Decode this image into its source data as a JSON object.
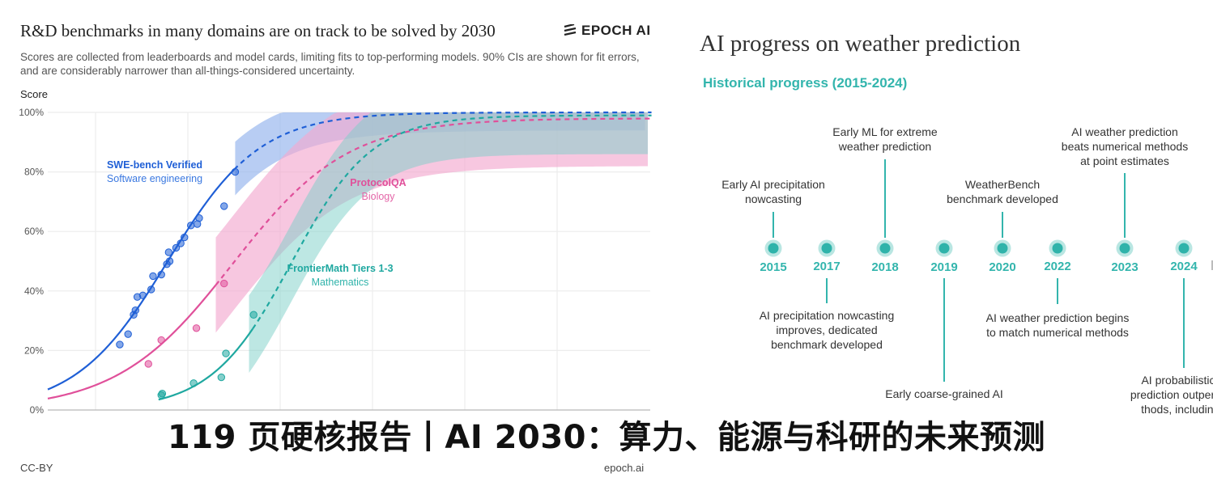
{
  "left_panel": {
    "title": "R&D benchmarks in many domains are on track to be solved by 2030",
    "logo": "EPOCH AI",
    "subtitle": "Scores are collected from leaderboards and model cards, limiting fits to top-performing models. 90% CIs are shown for fit errors, and are considerably narrower than all-things-considered uncertainty.",
    "y_axis_title": "Score",
    "license": "CC-BY",
    "source": "epoch.ai"
  },
  "chart_data": {
    "type": "scatter",
    "ylabel": "Score",
    "ylim": [
      0,
      100
    ],
    "yticks": [
      "0%",
      "20%",
      "40%",
      "60%",
      "80%",
      "100%"
    ],
    "grid": true,
    "colors": {
      "swe": "#1f5fd6",
      "protocol": "#e0509a",
      "frontier": "#1fa8a0"
    },
    "series": [
      {
        "key": "swe",
        "name": "SWE-bench Verified",
        "domain": "Software engineering",
        "points": [
          [
            0.78,
            22
          ],
          [
            0.87,
            25.5
          ],
          [
            0.93,
            32
          ],
          [
            0.95,
            33.5
          ],
          [
            0.97,
            38
          ],
          [
            1.03,
            38.5
          ],
          [
            1.12,
            40.5
          ],
          [
            1.14,
            45
          ],
          [
            1.23,
            45.5
          ],
          [
            1.29,
            49
          ],
          [
            1.32,
            50
          ],
          [
            1.31,
            53
          ],
          [
            1.39,
            54.5
          ],
          [
            1.44,
            56
          ],
          [
            1.48,
            58
          ],
          [
            1.55,
            62
          ],
          [
            1.62,
            62.5
          ],
          [
            1.64,
            64.5
          ],
          [
            1.91,
            68.5
          ],
          [
            2.03,
            80
          ]
        ]
      },
      {
        "key": "protocol",
        "name": "ProtocolQA",
        "domain": "Biology",
        "points": [
          [
            1.09,
            15.5
          ],
          [
            1.23,
            23.5
          ],
          [
            1.61,
            27.5
          ],
          [
            1.91,
            42.5
          ]
        ]
      },
      {
        "key": "frontier",
        "name": "FrontierMath Tiers 1-3",
        "domain": "Mathematics",
        "points": [
          [
            1.23,
            5
          ],
          [
            1.24,
            5.5
          ],
          [
            1.58,
            9
          ],
          [
            1.88,
            11
          ],
          [
            1.93,
            19
          ],
          [
            2.23,
            32
          ]
        ]
      }
    ]
  },
  "right_panel": {
    "title": "AI progress on weather prediction",
    "subtitle": "Historical progress (2015-2024)",
    "years": [
      "2015",
      "2017",
      "2018",
      "2019",
      "2020",
      "2022",
      "2023",
      "2024"
    ],
    "events_above": [
      {
        "year": "2015",
        "text": "Early AI precipitation\nnowcasting"
      },
      {
        "year": "2018",
        "text": "Early ML for extreme\nweather prediction"
      },
      {
        "year": "2020",
        "text": "WeatherBench\nbenchmark developed"
      },
      {
        "year": "2023",
        "text": "AI weather prediction\nbeats numerical methods\nat point estimates"
      }
    ],
    "events_below": [
      {
        "year": "2017",
        "text": "AI precipitation nowcasting\nimproves, dedicated\nbenchmark developed"
      },
      {
        "year": "2022",
        "text": "AI weather prediction begins\nto match numerical methods"
      },
      {
        "year": "2019",
        "text": "Early coarse-grained AI"
      },
      {
        "year": "2024",
        "text": "AI probabilistic w\nprediction outperform\nthods, including r"
      }
    ]
  },
  "banner": "119 页硬核报告丨AI 2030：算力、能源与科研的未来预测"
}
